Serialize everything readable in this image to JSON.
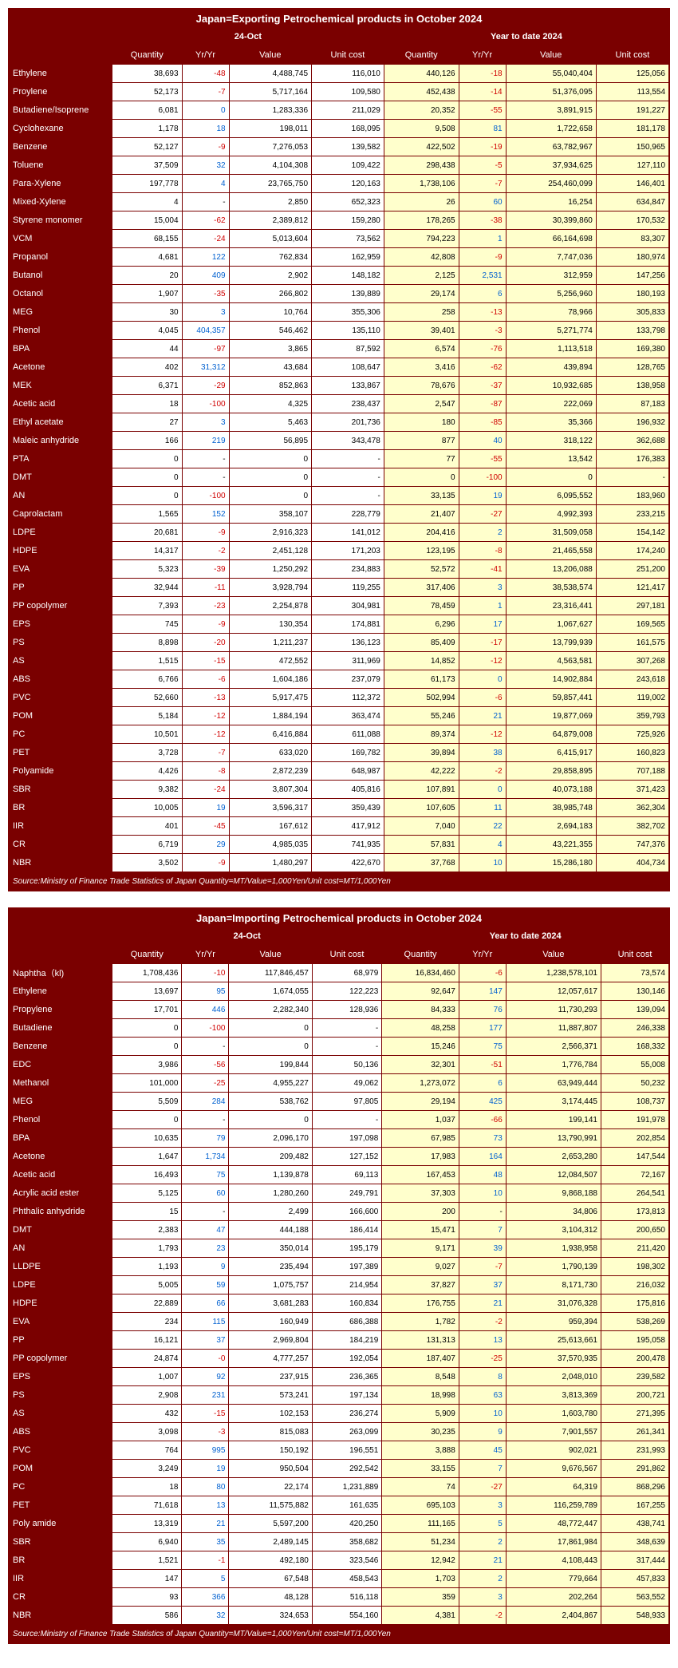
{
  "export": {
    "title": "Japan=Exporting Petrochemical products in October 2024",
    "group1": "24-Oct",
    "group2": "Year to date 2024",
    "cols": [
      "Quantity",
      "Yr/Yr",
      "Value",
      "Unit cost",
      "Quantity",
      "Yr/Yr",
      "Value",
      "Unit cost"
    ],
    "source": "Source:Ministry of Finance Trade Statistics of Japan  Quantity=MT/Value=1,000Yen/Unit cost=MT/1,000Yen",
    "rows": [
      {
        "p": "Ethylene",
        "d": [
          "38,693",
          "-48",
          "4,488,745",
          "116,010",
          "440,126",
          "-18",
          "55,040,404",
          "125,056"
        ]
      },
      {
        "p": "Proylene",
        "d": [
          "52,173",
          "-7",
          "5,717,164",
          "109,580",
          "452,438",
          "-14",
          "51,376,095",
          "113,554"
        ]
      },
      {
        "p": "Butadiene/Isoprene",
        "d": [
          "6,081",
          "0",
          "1,283,336",
          "211,029",
          "20,352",
          "-55",
          "3,891,915",
          "191,227"
        ]
      },
      {
        "p": "Cyclohexane",
        "d": [
          "1,178",
          "18",
          "198,011",
          "168,095",
          "9,508",
          "81",
          "1,722,658",
          "181,178"
        ]
      },
      {
        "p": "Benzene",
        "d": [
          "52,127",
          "-9",
          "7,276,053",
          "139,582",
          "422,502",
          "-19",
          "63,782,967",
          "150,965"
        ]
      },
      {
        "p": "Toluene",
        "d": [
          "37,509",
          "32",
          "4,104,308",
          "109,422",
          "298,438",
          "-5",
          "37,934,625",
          "127,110"
        ]
      },
      {
        "p": "Para-Xylene",
        "d": [
          "197,778",
          "4",
          "23,765,750",
          "120,163",
          "1,738,106",
          "-7",
          "254,460,099",
          "146,401"
        ]
      },
      {
        "p": "Mixed-Xylene",
        "d": [
          "4",
          "-",
          "2,850",
          "652,323",
          "26",
          "60",
          "16,254",
          "634,847"
        ]
      },
      {
        "p": "Styrene monomer",
        "d": [
          "15,004",
          "-62",
          "2,389,812",
          "159,280",
          "178,265",
          "-38",
          "30,399,860",
          "170,532"
        ]
      },
      {
        "p": "VCM",
        "d": [
          "68,155",
          "-24",
          "5,013,604",
          "73,562",
          "794,223",
          "1",
          "66,164,698",
          "83,307"
        ]
      },
      {
        "p": "Propanol",
        "d": [
          "4,681",
          "122",
          "762,834",
          "162,959",
          "42,808",
          "-9",
          "7,747,036",
          "180,974"
        ]
      },
      {
        "p": "Butanol",
        "d": [
          "20",
          "409",
          "2,902",
          "148,182",
          "2,125",
          "2,531",
          "312,959",
          "147,256"
        ]
      },
      {
        "p": "Octanol",
        "d": [
          "1,907",
          "-35",
          "266,802",
          "139,889",
          "29,174",
          "6",
          "5,256,960",
          "180,193"
        ]
      },
      {
        "p": "MEG",
        "d": [
          "30",
          "3",
          "10,764",
          "355,306",
          "258",
          "-13",
          "78,966",
          "305,833"
        ]
      },
      {
        "p": "Phenol",
        "d": [
          "4,045",
          "404,357",
          "546,462",
          "135,110",
          "39,401",
          "-3",
          "5,271,774",
          "133,798"
        ]
      },
      {
        "p": "BPA",
        "d": [
          "44",
          "-97",
          "3,865",
          "87,592",
          "6,574",
          "-76",
          "1,113,518",
          "169,380"
        ]
      },
      {
        "p": "Acetone",
        "d": [
          "402",
          "31,312",
          "43,684",
          "108,647",
          "3,416",
          "-62",
          "439,894",
          "128,765"
        ]
      },
      {
        "p": "MEK",
        "d": [
          "6,371",
          "-29",
          "852,863",
          "133,867",
          "78,676",
          "-37",
          "10,932,685",
          "138,958"
        ]
      },
      {
        "p": "Acetic acid",
        "d": [
          "18",
          "-100",
          "4,325",
          "238,437",
          "2,547",
          "-87",
          "222,069",
          "87,183"
        ]
      },
      {
        "p": "Ethyl acetate",
        "d": [
          "27",
          "3",
          "5,463",
          "201,736",
          "180",
          "-85",
          "35,366",
          "196,932"
        ]
      },
      {
        "p": "Maleic anhydride",
        "d": [
          "166",
          "219",
          "56,895",
          "343,478",
          "877",
          "40",
          "318,122",
          "362,688"
        ]
      },
      {
        "p": "PTA",
        "d": [
          "0",
          "-",
          "0",
          "-",
          "77",
          "-55",
          "13,542",
          "176,383"
        ]
      },
      {
        "p": "DMT",
        "d": [
          "0",
          "-",
          "0",
          "-",
          "0",
          "-100",
          "0",
          "-"
        ]
      },
      {
        "p": "AN",
        "d": [
          "0",
          "-100",
          "0",
          "-",
          "33,135",
          "19",
          "6,095,552",
          "183,960"
        ]
      },
      {
        "p": "Caprolactam",
        "d": [
          "1,565",
          "152",
          "358,107",
          "228,779",
          "21,407",
          "-27",
          "4,992,393",
          "233,215"
        ]
      },
      {
        "p": "LDPE",
        "d": [
          "20,681",
          "-9",
          "2,916,323",
          "141,012",
          "204,416",
          "2",
          "31,509,058",
          "154,142"
        ]
      },
      {
        "p": "HDPE",
        "d": [
          "14,317",
          "-2",
          "2,451,128",
          "171,203",
          "123,195",
          "-8",
          "21,465,558",
          "174,240"
        ]
      },
      {
        "p": "EVA",
        "d": [
          "5,323",
          "-39",
          "1,250,292",
          "234,883",
          "52,572",
          "-41",
          "13,206,088",
          "251,200"
        ]
      },
      {
        "p": "PP",
        "d": [
          "32,944",
          "-11",
          "3,928,794",
          "119,255",
          "317,406",
          "3",
          "38,538,574",
          "121,417"
        ]
      },
      {
        "p": "PP copolymer",
        "d": [
          "7,393",
          "-23",
          "2,254,878",
          "304,981",
          "78,459",
          "1",
          "23,316,441",
          "297,181"
        ]
      },
      {
        "p": "EPS",
        "d": [
          "745",
          "-9",
          "130,354",
          "174,881",
          "6,296",
          "17",
          "1,067,627",
          "169,565"
        ]
      },
      {
        "p": "PS",
        "d": [
          "8,898",
          "-20",
          "1,211,237",
          "136,123",
          "85,409",
          "-17",
          "13,799,939",
          "161,575"
        ]
      },
      {
        "p": "AS",
        "d": [
          "1,515",
          "-15",
          "472,552",
          "311,969",
          "14,852",
          "-12",
          "4,563,581",
          "307,268"
        ]
      },
      {
        "p": "ABS",
        "d": [
          "6,766",
          "-6",
          "1,604,186",
          "237,079",
          "61,173",
          "0",
          "14,902,884",
          "243,618"
        ]
      },
      {
        "p": "PVC",
        "d": [
          "52,660",
          "-13",
          "5,917,475",
          "112,372",
          "502,994",
          "-6",
          "59,857,441",
          "119,002"
        ]
      },
      {
        "p": "POM",
        "d": [
          "5,184",
          "-12",
          "1,884,194",
          "363,474",
          "55,246",
          "21",
          "19,877,069",
          "359,793"
        ]
      },
      {
        "p": "PC",
        "d": [
          "10,501",
          "-12",
          "6,416,884",
          "611,088",
          "89,374",
          "-12",
          "64,879,008",
          "725,926"
        ]
      },
      {
        "p": "PET",
        "d": [
          "3,728",
          "-7",
          "633,020",
          "169,782",
          "39,894",
          "38",
          "6,415,917",
          "160,823"
        ]
      },
      {
        "p": "Polyamide",
        "d": [
          "4,426",
          "-8",
          "2,872,239",
          "648,987",
          "42,222",
          "-2",
          "29,858,895",
          "707,188"
        ]
      },
      {
        "p": "SBR",
        "d": [
          "9,382",
          "-24",
          "3,807,304",
          "405,816",
          "107,891",
          "0",
          "40,073,188",
          "371,423"
        ]
      },
      {
        "p": "BR",
        "d": [
          "10,005",
          "19",
          "3,596,317",
          "359,439",
          "107,605",
          "11",
          "38,985,748",
          "362,304"
        ]
      },
      {
        "p": "IIR",
        "d": [
          "401",
          "-45",
          "167,612",
          "417,912",
          "7,040",
          "22",
          "2,694,183",
          "382,702"
        ]
      },
      {
        "p": "CR",
        "d": [
          "6,719",
          "29",
          "4,985,035",
          "741,935",
          "57,831",
          "4",
          "43,221,355",
          "747,376"
        ]
      },
      {
        "p": "NBR",
        "d": [
          "3,502",
          "-9",
          "1,480,297",
          "422,670",
          "37,768",
          "10",
          "15,286,180",
          "404,734"
        ]
      }
    ]
  },
  "import": {
    "title": "Japan=Importing Petrochemical products in October 2024",
    "group1": "24-Oct",
    "group2": "Year to date 2024",
    "cols": [
      "Quantity",
      "Yr/Yr",
      "Value",
      "Unit cost",
      "Quantity",
      "Yr/Yr",
      "Value",
      "Unit cost"
    ],
    "source": "Source:Ministry of Finance Trade Statistics of Japan  Quantity=MT/Value=1,000Yen/Unit cost=MT/1,000Yen",
    "rows": [
      {
        "p": "Naphtha（kl)",
        "d": [
          "1,708,436",
          "-10",
          "117,846,457",
          "68,979",
          "16,834,460",
          "-6",
          "1,238,578,101",
          "73,574"
        ]
      },
      {
        "p": "Ethylene",
        "d": [
          "13,697",
          "95",
          "1,674,055",
          "122,223",
          "92,647",
          "147",
          "12,057,617",
          "130,146"
        ]
      },
      {
        "p": "Propylene",
        "d": [
          "17,701",
          "446",
          "2,282,340",
          "128,936",
          "84,333",
          "76",
          "11,730,293",
          "139,094"
        ]
      },
      {
        "p": "Butadiene",
        "d": [
          "0",
          "-100",
          "0",
          "-",
          "48,258",
          "177",
          "11,887,807",
          "246,338"
        ]
      },
      {
        "p": "Benzene",
        "d": [
          "0",
          "-",
          "0",
          "-",
          "15,246",
          "75",
          "2,566,371",
          "168,332"
        ]
      },
      {
        "p": "EDC",
        "d": [
          "3,986",
          "-56",
          "199,844",
          "50,136",
          "32,301",
          "-51",
          "1,776,784",
          "55,008"
        ]
      },
      {
        "p": "Methanol",
        "d": [
          "101,000",
          "-25",
          "4,955,227",
          "49,062",
          "1,273,072",
          "6",
          "63,949,444",
          "50,232"
        ]
      },
      {
        "p": "MEG",
        "d": [
          "5,509",
          "284",
          "538,762",
          "97,805",
          "29,194",
          "425",
          "3,174,445",
          "108,737"
        ]
      },
      {
        "p": "Phenol",
        "d": [
          "0",
          "-",
          "0",
          "-",
          "1,037",
          "-66",
          "199,141",
          "191,978"
        ]
      },
      {
        "p": "BPA",
        "d": [
          "10,635",
          "79",
          "2,096,170",
          "197,098",
          "67,985",
          "73",
          "13,790,991",
          "202,854"
        ]
      },
      {
        "p": "Acetone",
        "d": [
          "1,647",
          "1,734",
          "209,482",
          "127,152",
          "17,983",
          "164",
          "2,653,280",
          "147,544"
        ]
      },
      {
        "p": "Acetic acid",
        "d": [
          "16,493",
          "75",
          "1,139,878",
          "69,113",
          "167,453",
          "48",
          "12,084,507",
          "72,167"
        ]
      },
      {
        "p": "Acrylic acid ester",
        "d": [
          "5,125",
          "60",
          "1,280,260",
          "249,791",
          "37,303",
          "10",
          "9,868,188",
          "264,541"
        ]
      },
      {
        "p": "Phthalic anhydride",
        "d": [
          "15",
          "-",
          "2,499",
          "166,600",
          "200",
          "-",
          "34,806",
          "173,813"
        ]
      },
      {
        "p": "DMT",
        "d": [
          "2,383",
          "47",
          "444,188",
          "186,414",
          "15,471",
          "7",
          "3,104,312",
          "200,650"
        ]
      },
      {
        "p": "AN",
        "d": [
          "1,793",
          "23",
          "350,014",
          "195,179",
          "9,171",
          "39",
          "1,938,958",
          "211,420"
        ]
      },
      {
        "p": "LLDPE",
        "d": [
          "1,193",
          "9",
          "235,494",
          "197,389",
          "9,027",
          "-7",
          "1,790,139",
          "198,302"
        ]
      },
      {
        "p": "LDPE",
        "d": [
          "5,005",
          "59",
          "1,075,757",
          "214,954",
          "37,827",
          "37",
          "8,171,730",
          "216,032"
        ]
      },
      {
        "p": "HDPE",
        "d": [
          "22,889",
          "66",
          "3,681,283",
          "160,834",
          "176,755",
          "21",
          "31,076,328",
          "175,816"
        ]
      },
      {
        "p": "EVA",
        "d": [
          "234",
          "115",
          "160,949",
          "686,388",
          "1,782",
          "-2",
          "959,394",
          "538,269"
        ]
      },
      {
        "p": "PP",
        "d": [
          "16,121",
          "37",
          "2,969,804",
          "184,219",
          "131,313",
          "13",
          "25,613,661",
          "195,058"
        ]
      },
      {
        "p": "PP copolymer",
        "d": [
          "24,874",
          "-0",
          "4,777,257",
          "192,054",
          "187,407",
          "-25",
          "37,570,935",
          "200,478"
        ]
      },
      {
        "p": "EPS",
        "d": [
          "1,007",
          "92",
          "237,915",
          "236,365",
          "8,548",
          "8",
          "2,048,010",
          "239,582"
        ]
      },
      {
        "p": "PS",
        "d": [
          "2,908",
          "231",
          "573,241",
          "197,134",
          "18,998",
          "63",
          "3,813,369",
          "200,721"
        ]
      },
      {
        "p": "AS",
        "d": [
          "432",
          "-15",
          "102,153",
          "236,274",
          "5,909",
          "10",
          "1,603,780",
          "271,395"
        ]
      },
      {
        "p": "ABS",
        "d": [
          "3,098",
          "-3",
          "815,083",
          "263,099",
          "30,235",
          "9",
          "7,901,557",
          "261,341"
        ]
      },
      {
        "p": "PVC",
        "d": [
          "764",
          "995",
          "150,192",
          "196,551",
          "3,888",
          "45",
          "902,021",
          "231,993"
        ]
      },
      {
        "p": "POM",
        "d": [
          "3,249",
          "19",
          "950,504",
          "292,542",
          "33,155",
          "7",
          "9,676,567",
          "291,862"
        ]
      },
      {
        "p": "PC",
        "d": [
          "18",
          "80",
          "22,174",
          "1,231,889",
          "74",
          "-27",
          "64,319",
          "868,296"
        ]
      },
      {
        "p": "PET",
        "d": [
          "71,618",
          "13",
          "11,575,882",
          "161,635",
          "695,103",
          "3",
          "116,259,789",
          "167,255"
        ]
      },
      {
        "p": "Poly amide",
        "d": [
          "13,319",
          "21",
          "5,597,200",
          "420,250",
          "111,165",
          "5",
          "48,772,447",
          "438,741"
        ]
      },
      {
        "p": "SBR",
        "d": [
          "6,940",
          "35",
          "2,489,145",
          "358,682",
          "51,234",
          "2",
          "17,861,984",
          "348,639"
        ]
      },
      {
        "p": "BR",
        "d": [
          "1,521",
          "-1",
          "492,180",
          "323,546",
          "12,942",
          "21",
          "4,108,443",
          "317,444"
        ]
      },
      {
        "p": "IIR",
        "d": [
          "147",
          "5",
          "67,548",
          "458,543",
          "1,703",
          "2",
          "779,664",
          "457,833"
        ]
      },
      {
        "p": "CR",
        "d": [
          "93",
          "366",
          "48,128",
          "516,118",
          "359",
          "3",
          "202,264",
          "563,552"
        ]
      },
      {
        "p": "NBR",
        "d": [
          "586",
          "32",
          "324,653",
          "554,160",
          "4,381",
          "-2",
          "2,404,867",
          "548,933"
        ]
      }
    ]
  }
}
